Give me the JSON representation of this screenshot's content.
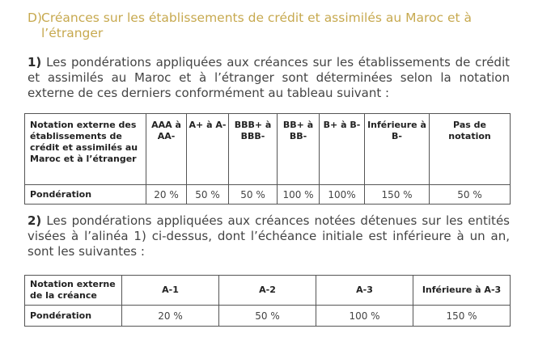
{
  "section": {
    "letter": "D)",
    "title": "Créances sur les établissements de crédit et assimilés au Maroc et à l’étranger"
  },
  "paragraph1": {
    "num": "1)",
    "text": "Les pondérations appliquées aux créances sur les établissements de crédit et assimilés au Maroc et à l’étranger sont déterminées selon la notation externe de ces derniers conformément au tableau suivant :"
  },
  "table1": {
    "header_label": "Notation externe des établissements de crédit et assimilés au Maroc et à l’étranger",
    "columns": [
      "AAA à AA-",
      "A+ à A-",
      "BBB+ à BBB-",
      "BB+ à BB-",
      "B+ à B-",
      "Inférieure à B-",
      "Pas de notation"
    ],
    "row_label": "Pondération",
    "values": [
      "20 %",
      "50 %",
      "50 %",
      "100 %",
      "100%",
      "150 %",
      "50 %"
    ]
  },
  "paragraph2": {
    "num": "2)",
    "text": "Les pondérations appliquées aux créances notées détenues sur les entités visées à l’alinéa 1) ci-dessus, dont l’échéance initiale est inférieure à un an, sont les suivantes :"
  },
  "table2": {
    "header_label": "Notation externe de la créance",
    "columns": [
      "A-1",
      "A-2",
      "A-3",
      "Inférieure à A-3"
    ],
    "row_label": "Pondération",
    "values": [
      "20 %",
      "50 %",
      "100 %",
      "150 %"
    ]
  }
}
